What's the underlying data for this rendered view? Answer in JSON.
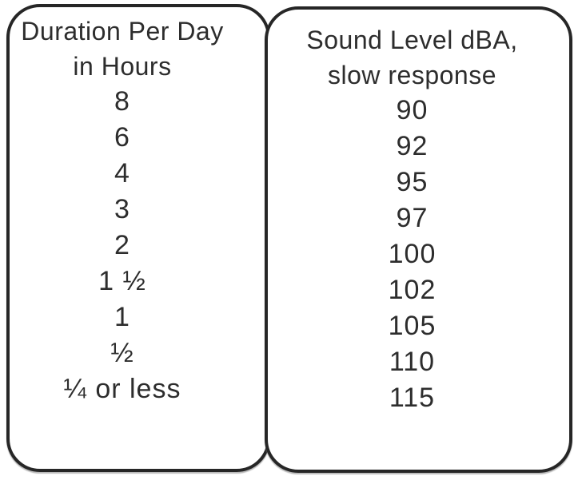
{
  "table": {
    "columns": [
      {
        "header_lines": [
          "Duration Per Day",
          "in Hours"
        ],
        "rows": [
          "8",
          "6",
          "4",
          "3",
          "2",
          "1 ½",
          "1",
          "½",
          "¼ or less"
        ]
      },
      {
        "header_lines": [
          "Sound Level dBA,",
          "slow response"
        ],
        "rows": [
          "90",
          "92",
          "95",
          "97",
          "100",
          "102",
          "105",
          "110",
          "115"
        ]
      }
    ]
  },
  "chart_data": {
    "type": "table",
    "columns": [
      "Duration Per Day in Hours",
      "Sound Level dBA, slow response"
    ],
    "rows": [
      [
        "8",
        "90"
      ],
      [
        "6",
        "92"
      ],
      [
        "4",
        "95"
      ],
      [
        "3",
        "97"
      ],
      [
        "2",
        "100"
      ],
      [
        "1 ½",
        "102"
      ],
      [
        "1",
        "105"
      ],
      [
        "½",
        "110"
      ],
      [
        "¼ or less",
        "115"
      ]
    ],
    "layout_hints": {
      "style": "two tangent rounded-rectangle panels, one per column",
      "grid": false,
      "legend": false
    }
  },
  "colors": {
    "border": "#262626",
    "text": "#2d2d2d",
    "background": "#ffffff"
  }
}
